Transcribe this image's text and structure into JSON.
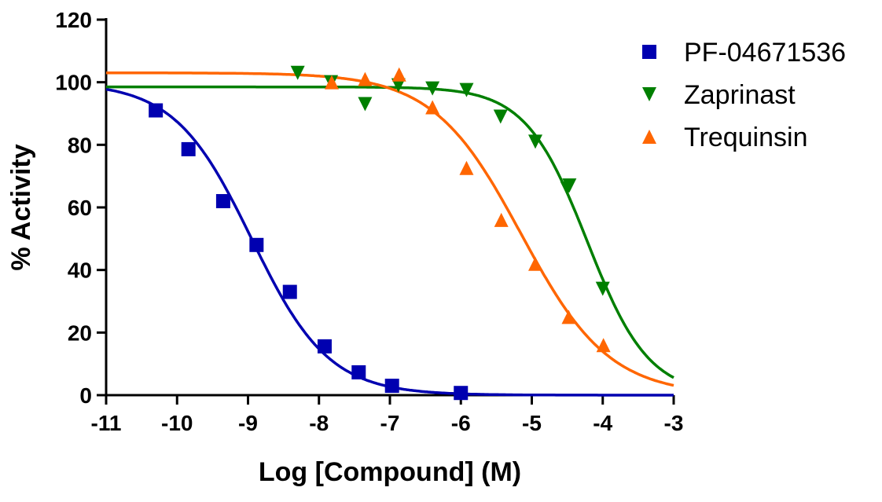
{
  "chart_data": {
    "type": "scatter",
    "title": "",
    "xlabel": "Log [Compound] (M)",
    "ylabel": "% Activity",
    "xlim": [
      -11,
      -3
    ],
    "ylim": [
      0,
      120
    ],
    "xticks": [
      "-11",
      "-10",
      "-9",
      "-8",
      "-7",
      "-6",
      "-5",
      "-4",
      "-3"
    ],
    "yticks": [
      "0",
      "20",
      "40",
      "60",
      "80",
      "100",
      "120"
    ],
    "grid": false,
    "legend": "top-right",
    "series": [
      {
        "name": "PF-04671536",
        "marker": "square",
        "color": "#0000b0",
        "x": [
          -10.3,
          -9.84,
          -9.35,
          -8.88,
          -8.41,
          -7.92,
          -7.44,
          -6.97,
          -6.0
        ],
        "y": [
          91,
          78.6,
          62,
          48,
          33,
          15.6,
          7.3,
          3,
          0.7
        ],
        "fit": {
          "top": 100,
          "bottom": 0,
          "logIC50": -8.95,
          "hill": 0.8
        }
      },
      {
        "name": "Zaprinast",
        "marker": "triangle-down",
        "color": "#007f00",
        "x": [
          -8.3,
          -7.83,
          -7.35,
          -6.88,
          -6.4,
          -5.92,
          -5.44,
          -4.95,
          -4.5,
          -4.47,
          -4.0
        ],
        "y": [
          103,
          100,
          93,
          99,
          98,
          97.5,
          89,
          81,
          66,
          67,
          34
        ],
        "fit": {
          "top": 98.5,
          "bottom": 0,
          "logIC50": -4.22,
          "hill": 1.0
        }
      },
      {
        "name": "Trequinsin",
        "marker": "triangle-up",
        "color": "#ff6600",
        "x": [
          -7.82,
          -7.35,
          -6.87,
          -6.4,
          -5.92,
          -5.43,
          -4.95,
          -4.48,
          -3.99
        ],
        "y": [
          100,
          101,
          102.5,
          92,
          72.6,
          56,
          42,
          25,
          16
        ],
        "fit": {
          "top": 103,
          "bottom": 0,
          "logIC50": -5.15,
          "hill": 0.7
        }
      }
    ]
  }
}
